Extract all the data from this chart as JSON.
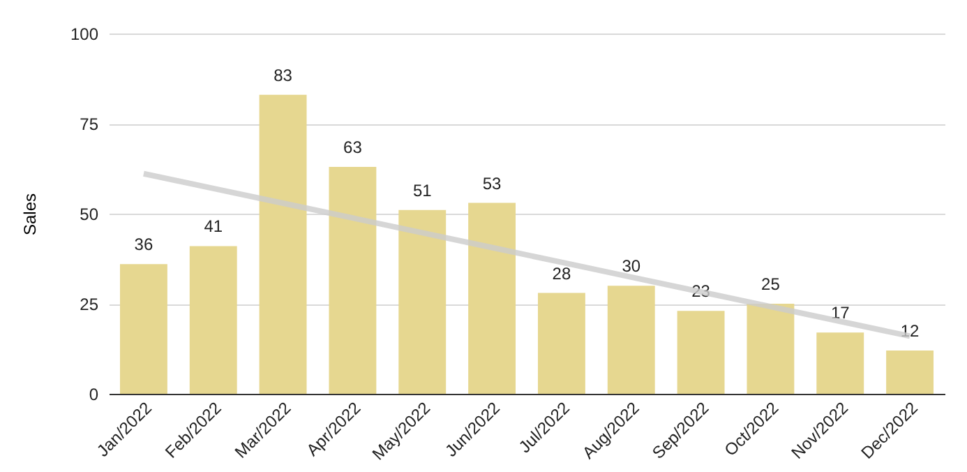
{
  "chart_data": {
    "type": "bar",
    "ylabel": "Sales",
    "categories": [
      "Jan/2022",
      "Feb/2022",
      "Mar/2022",
      "Apr/2022",
      "May/2022",
      "Jun/2022",
      "Jul/2022",
      "Aug/2022",
      "Sep/2022",
      "Oct/2022",
      "Nov/2022",
      "Dec/2022"
    ],
    "series": [
      {
        "color": "#e6d790",
        "values": [
          36,
          41,
          83,
          63,
          51,
          53,
          28,
          30,
          23,
          25,
          17,
          12
        ],
        "value_labels": [
          "36",
          "41",
          "83",
          "63",
          "51",
          "53",
          "28",
          "30",
          "23",
          "25",
          "17",
          "12"
        ]
      },
      {
        "type": "line",
        "color": "#cccccc",
        "x": [
          "Jan/2022",
          "Feb/2022",
          "Mar/2022",
          "Apr/2022",
          "May/2022",
          "Jun/2022",
          "Jul/2022",
          "Aug/2022",
          "Sep/2022",
          "Oct/2022",
          "Nov/2022",
          "Dec/2022"
        ],
        "values": [
          61.1,
          57.0,
          52.9,
          48.8,
          44.7,
          40.6,
          36.5,
          32.4,
          28.3,
          24.2,
          20.1,
          16.0
        ]
      }
    ],
    "ylim": [
      0,
      100
    ],
    "yticks": [
      0,
      25,
      50,
      75,
      100
    ],
    "grid": "y"
  }
}
